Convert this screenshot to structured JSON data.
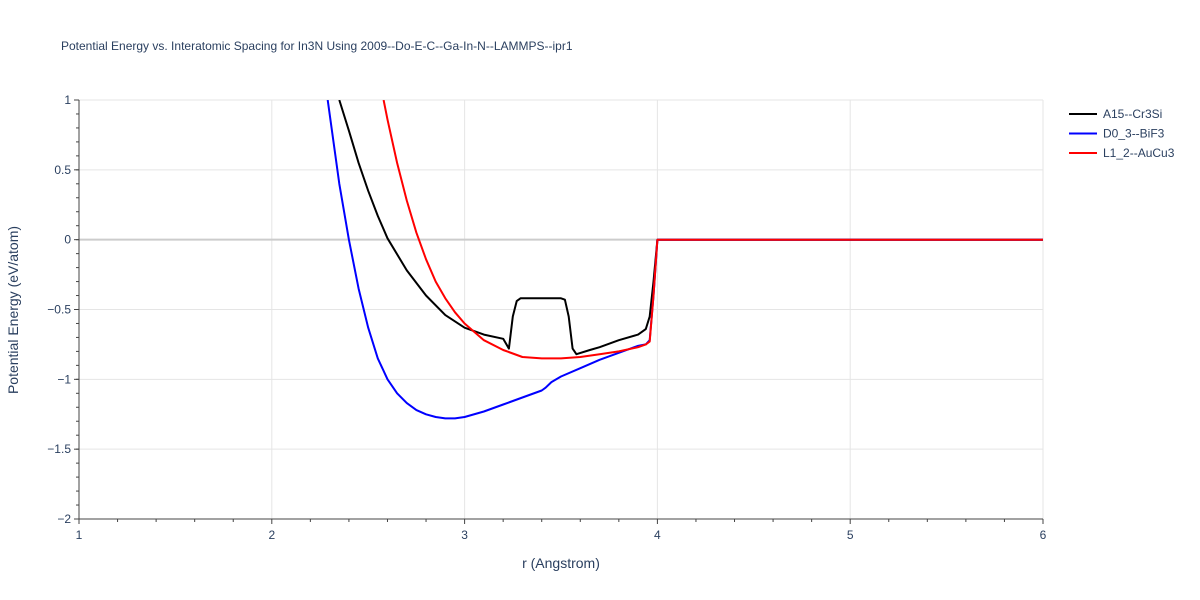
{
  "chart_data": {
    "type": "line",
    "title": "Potential Energy vs. Interatomic Spacing for In3N Using 2009--Do-E-C--Ga-In-N--LAMMPS--ipr1",
    "xlabel": "r (Angstrom)",
    "ylabel": "Potential Energy (eV/atom)",
    "xlim": [
      1,
      6
    ],
    "ylim": [
      -2,
      1
    ],
    "xticks": [
      1,
      2,
      3,
      4,
      5,
      6
    ],
    "xtick_labels": [
      "1",
      "2",
      "3",
      "4",
      "5",
      "6"
    ],
    "yticks": [
      1,
      0.5,
      0,
      -0.5,
      -1,
      -1.5,
      -2
    ],
    "ytick_labels": [
      "1",
      "0.5",
      "0",
      "−0.5",
      "−1",
      "−1.5",
      "−2"
    ],
    "grid": true,
    "legend_position": "top-right",
    "series": [
      {
        "name": "A15--Cr3Si",
        "color": "#000000",
        "x": [
          2.35,
          2.4,
          2.45,
          2.5,
          2.55,
          2.6,
          2.7,
          2.8,
          2.9,
          3.0,
          3.1,
          3.2,
          3.23,
          3.25,
          3.27,
          3.29,
          3.35,
          3.4,
          3.45,
          3.5,
          3.52,
          3.54,
          3.56,
          3.58,
          3.65,
          3.7,
          3.8,
          3.9,
          3.94,
          3.96,
          3.98,
          4.0,
          4.5,
          5.0,
          5.5,
          6.0
        ],
        "y": [
          1.0,
          0.78,
          0.55,
          0.35,
          0.17,
          0.01,
          -0.22,
          -0.4,
          -0.54,
          -0.63,
          -0.68,
          -0.71,
          -0.78,
          -0.55,
          -0.44,
          -0.42,
          -0.42,
          -0.42,
          -0.42,
          -0.42,
          -0.43,
          -0.55,
          -0.78,
          -0.82,
          -0.79,
          -0.77,
          -0.72,
          -0.68,
          -0.64,
          -0.55,
          -0.3,
          0.0,
          0.0,
          0.0,
          0.0,
          0.0
        ]
      },
      {
        "name": "D0_3--BiF3",
        "color": "#0000ff",
        "x": [
          2.29,
          2.32,
          2.35,
          2.4,
          2.45,
          2.5,
          2.55,
          2.6,
          2.65,
          2.7,
          2.75,
          2.8,
          2.85,
          2.9,
          2.95,
          3.0,
          3.1,
          3.2,
          3.3,
          3.4,
          3.42,
          3.45,
          3.5,
          3.6,
          3.7,
          3.8,
          3.9,
          3.94,
          3.96,
          3.98,
          4.0,
          4.5,
          5.0,
          5.5,
          6.0
        ],
        "y": [
          1.0,
          0.7,
          0.4,
          0.0,
          -0.35,
          -0.63,
          -0.85,
          -1.0,
          -1.1,
          -1.17,
          -1.22,
          -1.25,
          -1.27,
          -1.28,
          -1.28,
          -1.27,
          -1.23,
          -1.18,
          -1.13,
          -1.08,
          -1.06,
          -1.02,
          -0.98,
          -0.92,
          -0.86,
          -0.81,
          -0.76,
          -0.75,
          -0.72,
          -0.4,
          0.0,
          0.0,
          0.0,
          0.0,
          0.0
        ]
      },
      {
        "name": "L1_2--AuCu3",
        "color": "#ff0000",
        "x": [
          2.58,
          2.6,
          2.65,
          2.7,
          2.75,
          2.8,
          2.85,
          2.9,
          2.95,
          3.0,
          3.1,
          3.2,
          3.3,
          3.4,
          3.5,
          3.6,
          3.7,
          3.8,
          3.9,
          3.94,
          3.96,
          3.98,
          4.0,
          4.5,
          5.0,
          5.5,
          6.0
        ],
        "y": [
          1.0,
          0.86,
          0.55,
          0.28,
          0.05,
          -0.14,
          -0.3,
          -0.42,
          -0.52,
          -0.6,
          -0.72,
          -0.79,
          -0.84,
          -0.85,
          -0.85,
          -0.84,
          -0.82,
          -0.8,
          -0.77,
          -0.75,
          -0.73,
          -0.4,
          0.0,
          0.0,
          0.0,
          0.0,
          0.0
        ]
      }
    ]
  }
}
